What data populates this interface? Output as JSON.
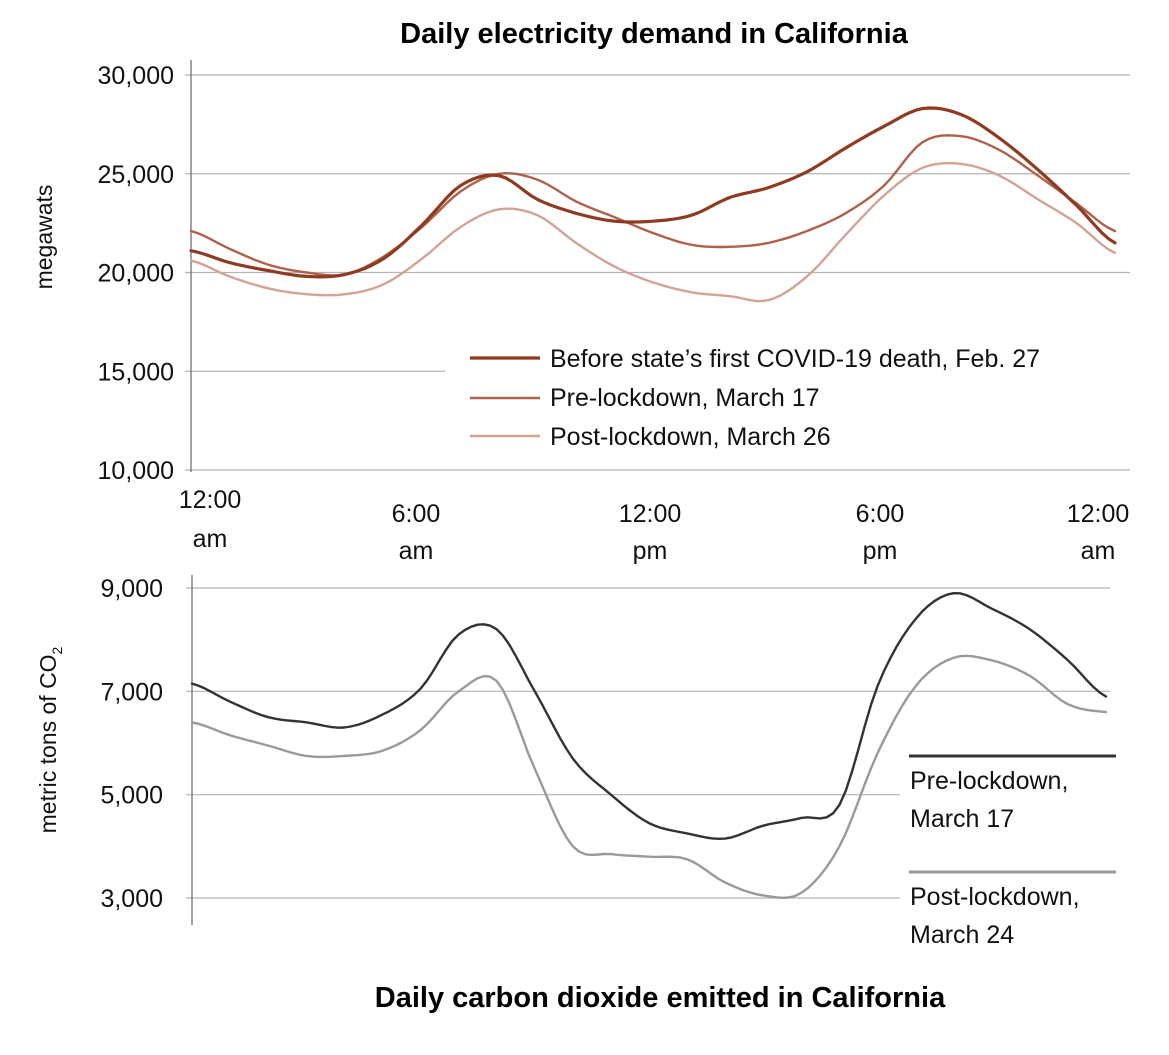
{
  "chart_data": [
    {
      "type": "line",
      "title": "Daily electricity demand in California",
      "xlabel": "",
      "ylabel": "megawats",
      "ylim": [
        10000,
        30000
      ],
      "yticks": [
        {
          "value": 30000,
          "label": "30,000"
        },
        {
          "value": 25000,
          "label": "25,000"
        },
        {
          "value": 20000,
          "label": "20,000"
        },
        {
          "value": 15000,
          "label": "15,000"
        },
        {
          "value": 10000,
          "label": "10,000"
        }
      ],
      "xlim": [
        0,
        24
      ],
      "xticks": [
        {
          "value": 0,
          "line1": "12:00",
          "line2": "am"
        },
        {
          "value": 6,
          "line1": "6:00",
          "line2": "am"
        },
        {
          "value": 12,
          "line1": "12:00",
          "line2": "pm"
        },
        {
          "value": 18,
          "line1": "6:00",
          "line2": "pm"
        },
        {
          "value": 24,
          "line1": "12:00",
          "line2": "am"
        }
      ],
      "grid": true,
      "legend_position": "bottom-right",
      "x": [
        0,
        1,
        2,
        3,
        4,
        5,
        6,
        7,
        8,
        9,
        10,
        11,
        12,
        13,
        14,
        15,
        16,
        17,
        18,
        19,
        20,
        21,
        22,
        23,
        24
      ],
      "series": [
        {
          "name": "Before state’s first COVID-19 death, Feb. 27",
          "color": "#8f3b22",
          "values": [
            21100,
            20500,
            20100,
            19800,
            19900,
            20700,
            22400,
            24400,
            24900,
            23700,
            23000,
            22600,
            22600,
            22900,
            23800,
            24300,
            25100,
            26300,
            27400,
            28300,
            28000,
            26800,
            25200,
            23400,
            21500
          ]
        },
        {
          "name": "Pre-lockdown, March 17",
          "color": "#b0614a",
          "values": [
            22100,
            21200,
            20400,
            20000,
            19900,
            20800,
            22300,
            24100,
            25000,
            24700,
            23600,
            22800,
            22000,
            21400,
            21300,
            21500,
            22100,
            23000,
            24400,
            26600,
            26900,
            26200,
            24900,
            23500,
            22100
          ]
        },
        {
          "name": "Post-lockdown, March 26",
          "color": "#d4a393",
          "values": [
            20600,
            19800,
            19200,
            18900,
            18900,
            19400,
            20700,
            22300,
            23200,
            22900,
            21500,
            20300,
            19500,
            19000,
            18800,
            18600,
            19800,
            21900,
            23900,
            25300,
            25500,
            24900,
            23700,
            22500,
            21000
          ]
        }
      ]
    },
    {
      "type": "line",
      "title": "Daily carbon dioxide emitted in California",
      "xlabel": "",
      "ylabel": "metric tons of CO2",
      "ylabel_main": "metric tons of CO",
      "ylabel_sub": "2",
      "ylim": [
        2500,
        9200
      ],
      "yticks": [
        {
          "value": 9000,
          "label": "9,000"
        },
        {
          "value": 7000,
          "label": "7,000"
        },
        {
          "value": 5000,
          "label": "5,000"
        },
        {
          "value": 3000,
          "label": "3,000"
        }
      ],
      "xlim": [
        0,
        24
      ],
      "grid": true,
      "legend_position": "right",
      "x": [
        0,
        1,
        2,
        3,
        4,
        5,
        6,
        7,
        8,
        9,
        10,
        11,
        12,
        13,
        14,
        15,
        16,
        17,
        18,
        19,
        20,
        21,
        22,
        23,
        24
      ],
      "series": [
        {
          "name": "Pre-lockdown, March 17",
          "name_line1": "Pre-lockdown,",
          "name_line2": "March 17",
          "color": "#333333",
          "values": [
            7150,
            6800,
            6500,
            6400,
            6300,
            6550,
            7050,
            8100,
            8200,
            7000,
            5700,
            5000,
            4450,
            4250,
            4150,
            4400,
            4550,
            4800,
            7100,
            8400,
            8900,
            8600,
            8200,
            7600,
            6900
          ]
        },
        {
          "name": "Post-lockdown, March 24",
          "name_line1": "Post-lockdown,",
          "name_line2": "March 24",
          "color": "#9a9a9a",
          "values": [
            6400,
            6150,
            5950,
            5750,
            5750,
            5850,
            6250,
            7000,
            7200,
            5500,
            4000,
            3850,
            3800,
            3750,
            3300,
            3050,
            3100,
            4000,
            5800,
            7100,
            7650,
            7600,
            7300,
            6750,
            6600
          ]
        }
      ]
    }
  ]
}
